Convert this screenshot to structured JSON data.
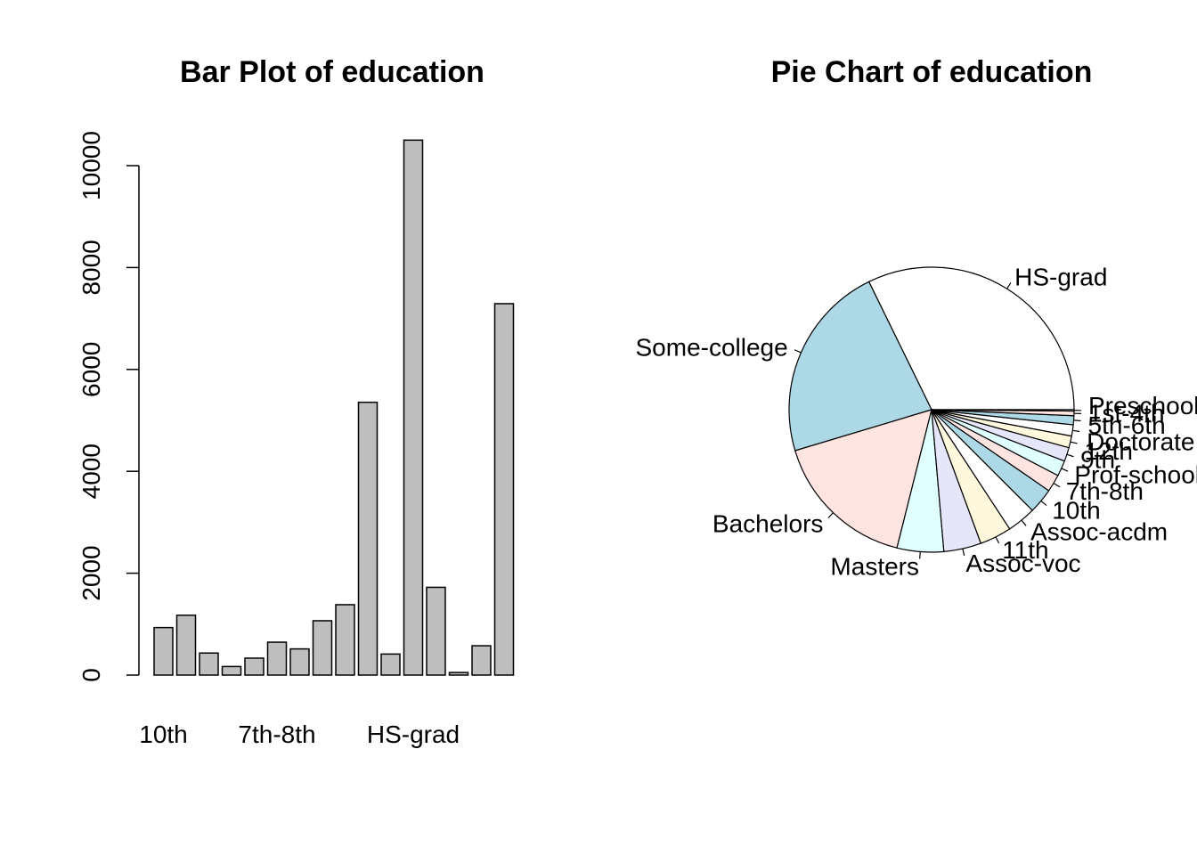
{
  "chart_data": [
    {
      "type": "bar",
      "title": "Bar Plot of education",
      "xlabel": "",
      "ylabel": "",
      "categories": [
        "10th",
        "11th",
        "12th",
        "1st-4th",
        "5th-6th",
        "7th-8th",
        "9th",
        "Assoc-acdm",
        "Assoc-voc",
        "Bachelors",
        "Doctorate",
        "HS-grad",
        "Masters",
        "Preschool",
        "Prof-school",
        "Some-college"
      ],
      "x_tick_labels_shown": [
        "10th",
        "7th-8th",
        "HS-grad"
      ],
      "values": [
        933,
        1175,
        433,
        168,
        333,
        646,
        514,
        1067,
        1382,
        5355,
        413,
        10501,
        1723,
        51,
        576,
        7291
      ],
      "yticks": [
        0,
        2000,
        4000,
        6000,
        8000,
        10000
      ],
      "ylim": [
        0,
        10501
      ],
      "bar_color": "#bebebe",
      "grid": false
    },
    {
      "type": "pie",
      "title": "Pie Chart of education",
      "slices": [
        {
          "label": "HS-grad",
          "value": 10501,
          "color": "#ffffff"
        },
        {
          "label": "Some-college",
          "value": 7291,
          "color": "#add8e6"
        },
        {
          "label": "Bachelors",
          "value": 5355,
          "color": "#ffe4e1"
        },
        {
          "label": "Masters",
          "value": 1723,
          "color": "#e0ffff"
        },
        {
          "label": "Assoc-voc",
          "value": 1382,
          "color": "#e6e6fa"
        },
        {
          "label": "11th",
          "value": 1175,
          "color": "#fff8dc"
        },
        {
          "label": "Assoc-acdm",
          "value": 1067,
          "color": "#ffffff"
        },
        {
          "label": "10th",
          "value": 933,
          "color": "#add8e6"
        },
        {
          "label": "7th-8th",
          "value": 646,
          "color": "#ffe4e1"
        },
        {
          "label": "Prof-school",
          "value": 576,
          "color": "#e0ffff"
        },
        {
          "label": "9th",
          "value": 514,
          "color": "#e6e6fa"
        },
        {
          "label": "12th",
          "value": 433,
          "color": "#fff8dc"
        },
        {
          "label": "Doctorate",
          "value": 413,
          "color": "#ffffff"
        },
        {
          "label": "5th-6th",
          "value": 333,
          "color": "#add8e6"
        },
        {
          "label": "1st-4th",
          "value": 168,
          "color": "#ffe4e1"
        },
        {
          "label": "Preschool",
          "value": 51,
          "color": "#e0ffff"
        }
      ],
      "start_angle_deg": 0,
      "direction": "counterclockwise",
      "legend": "none"
    }
  ]
}
